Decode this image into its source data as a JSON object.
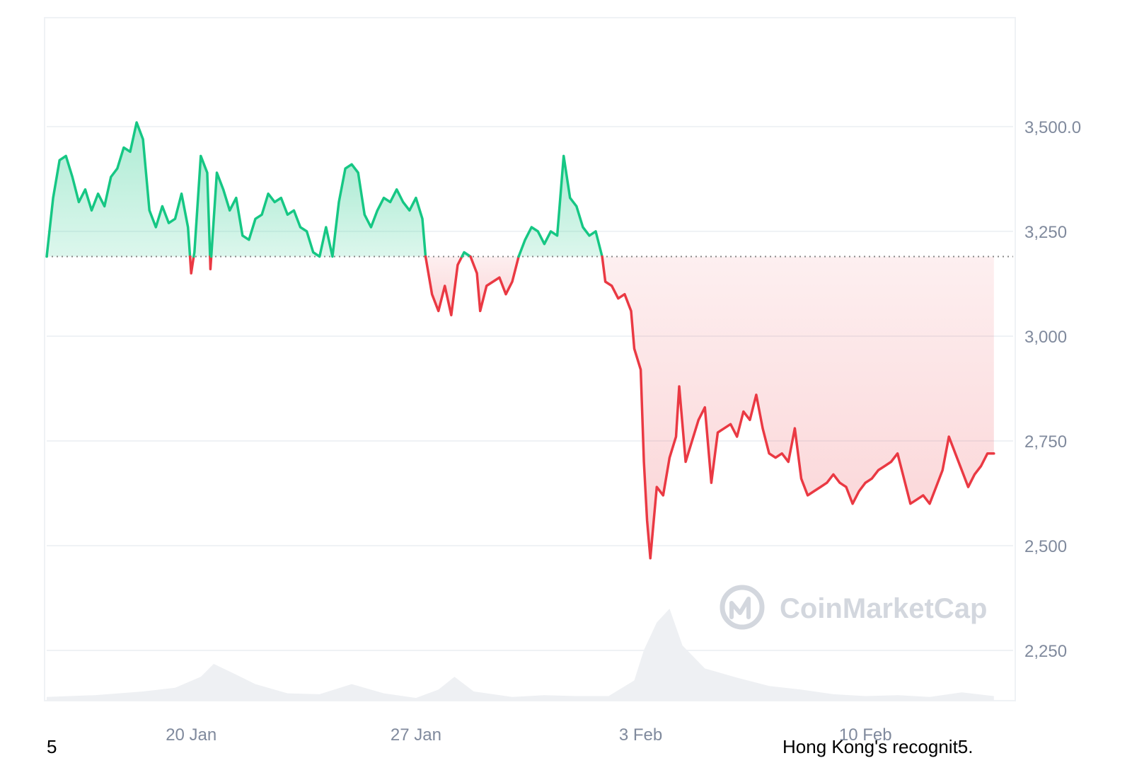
{
  "chart_data": {
    "type": "area",
    "x_tick_labels": [
      "20 Jan",
      "27 Jan",
      "3 Feb",
      "10 Feb"
    ],
    "x_tick_days": [
      5,
      12,
      19,
      26
    ],
    "x_range_days": [
      0.5,
      30.6
    ],
    "y_tick_labels": [
      "3,500.0",
      "3,250",
      "3,000",
      "2,750",
      "2,500",
      "2,250"
    ],
    "y_tick_values": [
      3500,
      3250,
      3000,
      2750,
      2500,
      2250
    ],
    "ylim": [
      2130,
      3760
    ],
    "baseline": 3190,
    "grid": true,
    "colors": {
      "up": "#16c784",
      "down": "#ea3943",
      "up_fill": "#c9f1e0",
      "down_fill": "#fde6e8",
      "volume": "#eef0f3",
      "grid": "#eff2f5",
      "baseline": "#888888"
    },
    "price": [
      [
        0.5,
        3190
      ],
      [
        0.7,
        3330
      ],
      [
        0.9,
        3420
      ],
      [
        1.1,
        3430
      ],
      [
        1.3,
        3380
      ],
      [
        1.5,
        3320
      ],
      [
        1.7,
        3350
      ],
      [
        1.9,
        3300
      ],
      [
        2.1,
        3340
      ],
      [
        2.3,
        3310
      ],
      [
        2.5,
        3380
      ],
      [
        2.7,
        3400
      ],
      [
        2.9,
        3450
      ],
      [
        3.1,
        3440
      ],
      [
        3.3,
        3510
      ],
      [
        3.5,
        3470
      ],
      [
        3.7,
        3300
      ],
      [
        3.9,
        3260
      ],
      [
        4.1,
        3310
      ],
      [
        4.3,
        3270
      ],
      [
        4.5,
        3280
      ],
      [
        4.7,
        3340
      ],
      [
        4.9,
        3260
      ],
      [
        5.0,
        3150
      ],
      [
        5.1,
        3200
      ],
      [
        5.3,
        3430
      ],
      [
        5.5,
        3390
      ],
      [
        5.6,
        3160
      ],
      [
        5.8,
        3390
      ],
      [
        6.0,
        3350
      ],
      [
        6.2,
        3300
      ],
      [
        6.4,
        3330
      ],
      [
        6.6,
        3240
      ],
      [
        6.8,
        3230
      ],
      [
        7.0,
        3280
      ],
      [
        7.2,
        3290
      ],
      [
        7.4,
        3340
      ],
      [
        7.6,
        3320
      ],
      [
        7.8,
        3330
      ],
      [
        8.0,
        3290
      ],
      [
        8.2,
        3300
      ],
      [
        8.4,
        3260
      ],
      [
        8.6,
        3250
      ],
      [
        8.8,
        3200
      ],
      [
        9.0,
        3190
      ],
      [
        9.2,
        3260
      ],
      [
        9.4,
        3190
      ],
      [
        9.6,
        3320
      ],
      [
        9.8,
        3400
      ],
      [
        10.0,
        3410
      ],
      [
        10.2,
        3390
      ],
      [
        10.4,
        3290
      ],
      [
        10.6,
        3260
      ],
      [
        10.8,
        3300
      ],
      [
        11.0,
        3330
      ],
      [
        11.2,
        3320
      ],
      [
        11.4,
        3350
      ],
      [
        11.6,
        3320
      ],
      [
        11.8,
        3300
      ],
      [
        12.0,
        3330
      ],
      [
        12.2,
        3280
      ],
      [
        12.3,
        3190
      ],
      [
        12.5,
        3100
      ],
      [
        12.7,
        3060
      ],
      [
        12.9,
        3120
      ],
      [
        13.1,
        3050
      ],
      [
        13.3,
        3170
      ],
      [
        13.5,
        3200
      ],
      [
        13.7,
        3190
      ],
      [
        13.9,
        3150
      ],
      [
        14.0,
        3060
      ],
      [
        14.2,
        3120
      ],
      [
        14.4,
        3130
      ],
      [
        14.6,
        3140
      ],
      [
        14.8,
        3100
      ],
      [
        15.0,
        3130
      ],
      [
        15.2,
        3190
      ],
      [
        15.4,
        3230
      ],
      [
        15.6,
        3260
      ],
      [
        15.8,
        3250
      ],
      [
        16.0,
        3220
      ],
      [
        16.2,
        3250
      ],
      [
        16.4,
        3240
      ],
      [
        16.6,
        3430
      ],
      [
        16.8,
        3330
      ],
      [
        17.0,
        3310
      ],
      [
        17.2,
        3260
      ],
      [
        17.4,
        3240
      ],
      [
        17.6,
        3250
      ],
      [
        17.8,
        3190
      ],
      [
        17.9,
        3130
      ],
      [
        18.1,
        3120
      ],
      [
        18.3,
        3090
      ],
      [
        18.5,
        3100
      ],
      [
        18.7,
        3060
      ],
      [
        18.8,
        2970
      ],
      [
        19.0,
        2920
      ],
      [
        19.1,
        2700
      ],
      [
        19.2,
        2560
      ],
      [
        19.3,
        2470
      ],
      [
        19.5,
        2640
      ],
      [
        19.7,
        2620
      ],
      [
        19.9,
        2710
      ],
      [
        20.1,
        2760
      ],
      [
        20.2,
        2880
      ],
      [
        20.4,
        2700
      ],
      [
        20.6,
        2750
      ],
      [
        20.8,
        2800
      ],
      [
        21.0,
        2830
      ],
      [
        21.2,
        2650
      ],
      [
        21.4,
        2770
      ],
      [
        21.6,
        2780
      ],
      [
        21.8,
        2790
      ],
      [
        22.0,
        2760
      ],
      [
        22.2,
        2820
      ],
      [
        22.4,
        2800
      ],
      [
        22.6,
        2860
      ],
      [
        22.8,
        2780
      ],
      [
        23.0,
        2720
      ],
      [
        23.2,
        2710
      ],
      [
        23.4,
        2720
      ],
      [
        23.6,
        2700
      ],
      [
        23.8,
        2780
      ],
      [
        24.0,
        2660
      ],
      [
        24.2,
        2620
      ],
      [
        24.4,
        2630
      ],
      [
        24.6,
        2640
      ],
      [
        24.8,
        2650
      ],
      [
        25.0,
        2670
      ],
      [
        25.2,
        2650
      ],
      [
        25.4,
        2640
      ],
      [
        25.6,
        2600
      ],
      [
        25.8,
        2630
      ],
      [
        26.0,
        2650
      ],
      [
        26.2,
        2660
      ],
      [
        26.4,
        2680
      ],
      [
        26.6,
        2690
      ],
      [
        26.8,
        2700
      ],
      [
        27.0,
        2720
      ],
      [
        27.2,
        2660
      ],
      [
        27.4,
        2600
      ],
      [
        27.6,
        2610
      ],
      [
        27.8,
        2620
      ],
      [
        28.0,
        2600
      ],
      [
        28.2,
        2640
      ],
      [
        28.4,
        2680
      ],
      [
        28.6,
        2760
      ],
      [
        28.8,
        2720
      ],
      [
        29.0,
        2680
      ],
      [
        29.2,
        2640
      ],
      [
        29.4,
        2670
      ],
      [
        29.6,
        2690
      ],
      [
        29.8,
        2720
      ],
      [
        30.0,
        2720
      ]
    ],
    "volume": [
      [
        0.5,
        0.04
      ],
      [
        2.0,
        0.06
      ],
      [
        3.5,
        0.1
      ],
      [
        4.5,
        0.14
      ],
      [
        5.3,
        0.26
      ],
      [
        5.7,
        0.4
      ],
      [
        6.3,
        0.3
      ],
      [
        7.0,
        0.18
      ],
      [
        8.0,
        0.08
      ],
      [
        9.0,
        0.07
      ],
      [
        10.0,
        0.18
      ],
      [
        11.0,
        0.08
      ],
      [
        12.0,
        0.03
      ],
      [
        12.7,
        0.12
      ],
      [
        13.2,
        0.26
      ],
      [
        13.8,
        0.1
      ],
      [
        15.0,
        0.04
      ],
      [
        16.0,
        0.06
      ],
      [
        17.0,
        0.05
      ],
      [
        18.0,
        0.05
      ],
      [
        18.8,
        0.22
      ],
      [
        19.1,
        0.55
      ],
      [
        19.5,
        0.85
      ],
      [
        19.9,
        1.0
      ],
      [
        20.3,
        0.6
      ],
      [
        21.0,
        0.35
      ],
      [
        22.0,
        0.25
      ],
      [
        23.0,
        0.16
      ],
      [
        24.0,
        0.12
      ],
      [
        25.0,
        0.07
      ],
      [
        26.0,
        0.05
      ],
      [
        27.0,
        0.06
      ],
      [
        28.0,
        0.04
      ],
      [
        29.0,
        0.09
      ],
      [
        30.0,
        0.05
      ]
    ]
  },
  "watermark": {
    "text": "CoinMarketCap"
  },
  "captions": {
    "left": "5",
    "right": "Hong Kong's recognit5."
  }
}
